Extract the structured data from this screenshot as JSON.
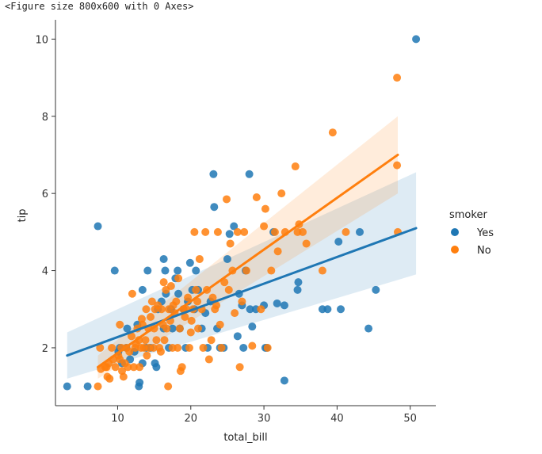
{
  "output_text": "<Figure size 800x600 with 0 Axes>",
  "chart_data": {
    "type": "scatter",
    "xlabel": "total_bill",
    "ylabel": "tip",
    "xlim": [
      1.5,
      53.5
    ],
    "ylim": [
      0.5,
      10.5
    ],
    "xticks": [
      10,
      20,
      30,
      40,
      50
    ],
    "yticks": [
      2,
      4,
      6,
      8,
      10
    ],
    "grid": false,
    "legend": {
      "title": "smoker",
      "placement": "right"
    },
    "series": [
      {
        "name": "Yes",
        "color": "#1f77b4",
        "points": [
          [
            3.1,
            1.0
          ],
          [
            5.9,
            1.0
          ],
          [
            7.3,
            5.15
          ],
          [
            9.6,
            4.0
          ],
          [
            10.1,
            1.9
          ],
          [
            10.3,
            2.0
          ],
          [
            10.6,
            1.6
          ],
          [
            11.2,
            2.0
          ],
          [
            11.3,
            2.5
          ],
          [
            11.7,
            1.7
          ],
          [
            12.3,
            1.9
          ],
          [
            12.7,
            2.6
          ],
          [
            12.9,
            1.0
          ],
          [
            13.0,
            1.1
          ],
          [
            13.4,
            3.5
          ],
          [
            13.4,
            1.6
          ],
          [
            13.9,
            2.0
          ],
          [
            14.1,
            4.0
          ],
          [
            14.5,
            2.0
          ],
          [
            15.1,
            1.6
          ],
          [
            15.3,
            1.5
          ],
          [
            15.5,
            3.0
          ],
          [
            16.0,
            3.2
          ],
          [
            16.3,
            2.5
          ],
          [
            16.3,
            4.3
          ],
          [
            16.5,
            4.0
          ],
          [
            16.6,
            3.4
          ],
          [
            17.0,
            2.0
          ],
          [
            17.3,
            3.0
          ],
          [
            17.5,
            2.5
          ],
          [
            17.9,
            3.8
          ],
          [
            18.2,
            4.0
          ],
          [
            18.3,
            3.4
          ],
          [
            18.5,
            2.5
          ],
          [
            19.0,
            3.0
          ],
          [
            19.3,
            2.0
          ],
          [
            19.6,
            3.2
          ],
          [
            19.9,
            4.2
          ],
          [
            20.2,
            3.5
          ],
          [
            20.5,
            3.0
          ],
          [
            20.7,
            4.0
          ],
          [
            21.0,
            3.5
          ],
          [
            21.5,
            2.5
          ],
          [
            22.0,
            2.9
          ],
          [
            22.3,
            2.0
          ],
          [
            22.7,
            3.2
          ],
          [
            23.1,
            6.5
          ],
          [
            23.2,
            5.65
          ],
          [
            23.6,
            2.5
          ],
          [
            24.0,
            2.0
          ],
          [
            24.5,
            2.0
          ],
          [
            25.0,
            4.3
          ],
          [
            25.3,
            4.95
          ],
          [
            25.9,
            5.15
          ],
          [
            26.4,
            2.3
          ],
          [
            26.6,
            3.4
          ],
          [
            27.0,
            3.1
          ],
          [
            27.2,
            2.0
          ],
          [
            27.5,
            4.0
          ],
          [
            28.0,
            6.5
          ],
          [
            28.1,
            3.0
          ],
          [
            28.4,
            2.55
          ],
          [
            28.9,
            3.0
          ],
          [
            30.0,
            3.1
          ],
          [
            30.2,
            2.0
          ],
          [
            30.4,
            2.0
          ],
          [
            31.3,
            5.0
          ],
          [
            31.8,
            3.15
          ],
          [
            32.8,
            1.15
          ],
          [
            32.8,
            3.1
          ],
          [
            34.6,
            3.5
          ],
          [
            34.7,
            3.7
          ],
          [
            38.0,
            3.0
          ],
          [
            38.7,
            3.0
          ],
          [
            40.2,
            4.75
          ],
          [
            40.5,
            3.0
          ],
          [
            43.1,
            5.0
          ],
          [
            44.3,
            2.5
          ],
          [
            45.3,
            3.5
          ],
          [
            50.8,
            10.0
          ]
        ],
        "regression": {
          "x": [
            3.1,
            50.8
          ],
          "y": [
            1.8,
            5.1
          ],
          "ci_low": [
            1.2,
            3.9
          ],
          "ci_high": [
            2.4,
            6.55
          ]
        }
      },
      {
        "name": "No",
        "color": "#ff7f0e",
        "points": [
          [
            7.3,
            1.0
          ],
          [
            7.6,
            2.0
          ],
          [
            7.7,
            1.45
          ],
          [
            8.3,
            1.5
          ],
          [
            8.5,
            1.5
          ],
          [
            8.6,
            1.25
          ],
          [
            8.8,
            1.6
          ],
          [
            8.9,
            1.2
          ],
          [
            9.2,
            2.0
          ],
          [
            9.4,
            1.7
          ],
          [
            9.7,
            1.5
          ],
          [
            10.1,
            1.8
          ],
          [
            10.3,
            1.7
          ],
          [
            10.3,
            2.6
          ],
          [
            10.5,
            2.0
          ],
          [
            10.6,
            1.4
          ],
          [
            10.8,
            1.25
          ],
          [
            11.0,
            1.6
          ],
          [
            11.2,
            2.0
          ],
          [
            11.4,
            1.5
          ],
          [
            11.6,
            1.9
          ],
          [
            11.9,
            2.3
          ],
          [
            12.0,
            3.4
          ],
          [
            12.2,
            1.5
          ],
          [
            12.4,
            2.0
          ],
          [
            12.5,
            2.1
          ],
          [
            12.7,
            2.5
          ],
          [
            12.9,
            2.2
          ],
          [
            13.0,
            1.5
          ],
          [
            13.2,
            2.0
          ],
          [
            13.3,
            2.75
          ],
          [
            13.4,
            2.6
          ],
          [
            13.6,
            2.0
          ],
          [
            13.8,
            2.2
          ],
          [
            13.9,
            3.0
          ],
          [
            14.0,
            1.8
          ],
          [
            14.2,
            2.5
          ],
          [
            14.3,
            2.0
          ],
          [
            14.5,
            2.8
          ],
          [
            14.7,
            3.2
          ],
          [
            14.9,
            2.0
          ],
          [
            15.0,
            2.5
          ],
          [
            15.1,
            3.0
          ],
          [
            15.3,
            2.2
          ],
          [
            15.5,
            3.1
          ],
          [
            15.7,
            2.0
          ],
          [
            15.9,
            1.9
          ],
          [
            16.0,
            3.0
          ],
          [
            16.2,
            2.6
          ],
          [
            16.3,
            3.7
          ],
          [
            16.4,
            2.2
          ],
          [
            16.6,
            3.5
          ],
          [
            16.7,
            2.5
          ],
          [
            16.9,
            1.0
          ],
          [
            17.0,
            3.0
          ],
          [
            17.2,
            2.7
          ],
          [
            17.3,
            3.6
          ],
          [
            17.5,
            2.0
          ],
          [
            17.6,
            3.1
          ],
          [
            17.8,
            2.9
          ],
          [
            18.0,
            3.2
          ],
          [
            18.2,
            2.0
          ],
          [
            18.3,
            3.8
          ],
          [
            18.5,
            2.5
          ],
          [
            18.6,
            1.4
          ],
          [
            18.8,
            1.5
          ],
          [
            19.0,
            3.0
          ],
          [
            19.2,
            2.8
          ],
          [
            19.4,
            3.0
          ],
          [
            19.6,
            3.3
          ],
          [
            19.8,
            2.0
          ],
          [
            20.0,
            2.4
          ],
          [
            20.1,
            2.7
          ],
          [
            20.3,
            3.0
          ],
          [
            20.5,
            5.0
          ],
          [
            20.7,
            3.5
          ],
          [
            20.9,
            3.2
          ],
          [
            21.0,
            2.5
          ],
          [
            21.2,
            4.3
          ],
          [
            21.5,
            3.0
          ],
          [
            21.7,
            2.0
          ],
          [
            22.0,
            5.0
          ],
          [
            22.2,
            3.5
          ],
          [
            22.5,
            1.7
          ],
          [
            22.8,
            2.2
          ],
          [
            23.0,
            3.3
          ],
          [
            23.3,
            3.0
          ],
          [
            23.5,
            3.1
          ],
          [
            23.7,
            5.0
          ],
          [
            24.0,
            2.6
          ],
          [
            24.2,
            2.0
          ],
          [
            24.6,
            3.7
          ],
          [
            24.9,
            5.85
          ],
          [
            25.2,
            3.5
          ],
          [
            25.4,
            4.7
          ],
          [
            25.7,
            4.0
          ],
          [
            26.0,
            2.9
          ],
          [
            26.4,
            5.0
          ],
          [
            26.7,
            1.5
          ],
          [
            27.0,
            3.2
          ],
          [
            27.3,
            5.0
          ],
          [
            27.6,
            4.0
          ],
          [
            28.4,
            2.05
          ],
          [
            29.0,
            5.9
          ],
          [
            29.6,
            3.0
          ],
          [
            30.0,
            5.15
          ],
          [
            30.2,
            5.6
          ],
          [
            30.5,
            2.0
          ],
          [
            31.0,
            4.0
          ],
          [
            31.5,
            5.0
          ],
          [
            31.9,
            4.5
          ],
          [
            32.4,
            6.0
          ],
          [
            32.9,
            5.0
          ],
          [
            34.3,
            6.7
          ],
          [
            34.6,
            5.0
          ],
          [
            34.8,
            5.2
          ],
          [
            35.3,
            5.0
          ],
          [
            35.8,
            4.7
          ],
          [
            38.0,
            4.0
          ],
          [
            39.4,
            7.58
          ],
          [
            41.2,
            5.0
          ],
          [
            48.2,
            9.0
          ],
          [
            48.2,
            6.73
          ],
          [
            48.3,
            5.0
          ]
        ],
        "regression": {
          "x": [
            7.3,
            48.3
          ],
          "y": [
            1.5,
            7.0
          ],
          "ci_low": [
            1.2,
            6.0
          ],
          "ci_high": [
            1.8,
            8.0
          ]
        }
      }
    ]
  }
}
